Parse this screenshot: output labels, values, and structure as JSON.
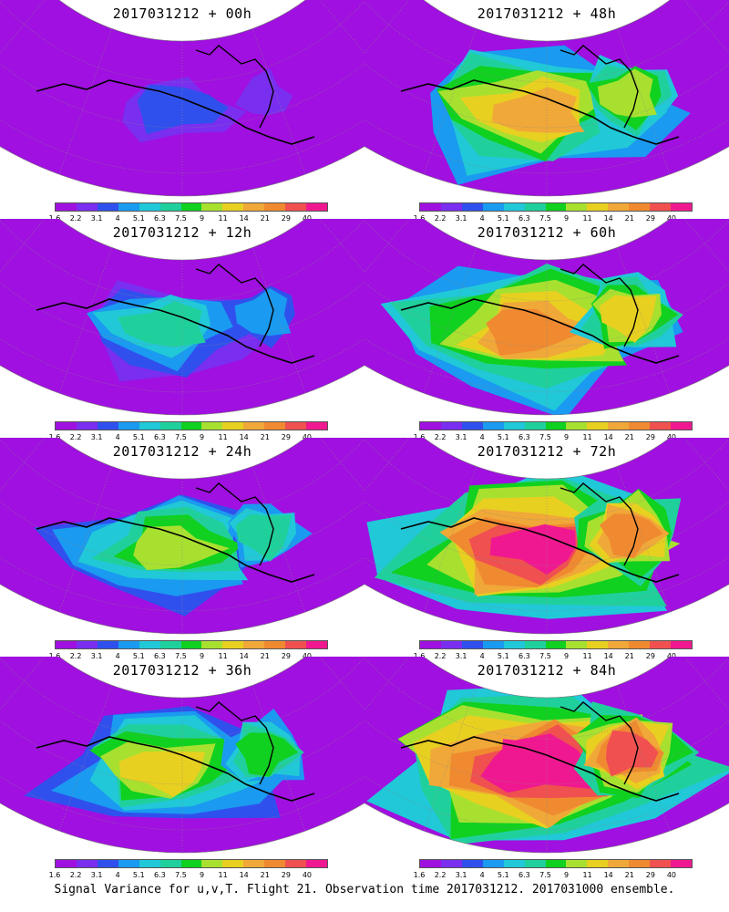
{
  "caption": "Signal Variance for u,v,T. Flight 21. Observation time 2017031212. 2017031000 ensemble.",
  "colorbar": {
    "labels": [
      "1.6",
      "2.2",
      "3.1",
      "4",
      "5.1",
      "6.3",
      "7.5",
      "9",
      "11",
      "14",
      "21",
      "29",
      "40"
    ],
    "colors": [
      "#a010e0",
      "#7a2ef0",
      "#3050ee",
      "#1a9af0",
      "#20c8d8",
      "#20d09c",
      "#10d020",
      "#a8e030",
      "#e8d020",
      "#f0a838",
      "#f08a30",
      "#f05050",
      "#f01890"
    ]
  },
  "panels": [
    {
      "title": "2017031212 + 00h",
      "level": 0.0
    },
    {
      "title": "2017031212 + 48h",
      "level": 0.55
    },
    {
      "title": "2017031212 + 12h",
      "level": 0.2
    },
    {
      "title": "2017031212 + 60h",
      "level": 0.65
    },
    {
      "title": "2017031212 + 24h",
      "level": 0.33
    },
    {
      "title": "2017031212 + 72h",
      "level": 0.75
    },
    {
      "title": "2017031212 + 36h",
      "level": 0.45
    },
    {
      "title": "2017031212 + 84h",
      "level": 0.85
    }
  ]
}
